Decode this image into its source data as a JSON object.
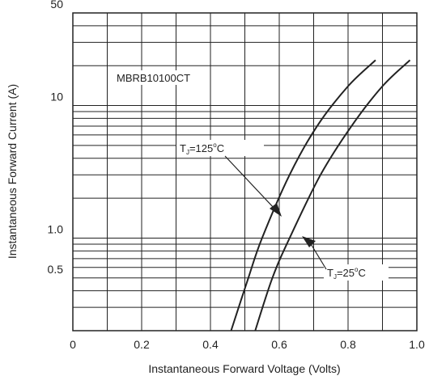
{
  "chart_data": {
    "type": "line",
    "title": "",
    "xlabel": "Instantaneous Forward Voltage (Volts)",
    "ylabel": "Instantaneous Forward Current (A)",
    "xlim": [
      0,
      1.0
    ],
    "ylim": [
      0.2,
      50
    ],
    "y_scale": "log",
    "grid": true,
    "x_ticks": [
      0,
      0.2,
      0.4,
      0.6,
      0.8,
      1.0
    ],
    "x_tick_labels": [
      "0",
      "0.2",
      "0.4",
      "0.6",
      "0.8",
      "1.0"
    ],
    "y_ticks": [
      0.5,
      1.0,
      10,
      50
    ],
    "y_tick_labels": [
      "0.5",
      "1.0",
      "10",
      "50"
    ],
    "annotations": {
      "part_number": "MBRB10100CT",
      "hot_curve": {
        "prefix": "T",
        "sub": "J",
        "value": "=125",
        "unit_sup": "o",
        "unit": "C"
      },
      "room_curve": {
        "prefix": "T",
        "sub": "J",
        "value": "=25",
        "unit_sup": "o",
        "unit": "C"
      }
    },
    "series": [
      {
        "points": [
          [
            0.46,
            0.2
          ],
          [
            0.51,
            0.5
          ],
          [
            0.55,
            1.0
          ],
          [
            0.63,
            3.0
          ],
          [
            0.71,
            7.0
          ],
          [
            0.8,
            14.0
          ],
          [
            0.88,
            22.0
          ]
        ]
      },
      {
        "points": [
          [
            0.53,
            0.2
          ],
          [
            0.58,
            0.5
          ],
          [
            0.63,
            1.0
          ],
          [
            0.72,
            3.0
          ],
          [
            0.81,
            7.0
          ],
          [
            0.9,
            14.0
          ],
          [
            0.98,
            22.0
          ]
        ]
      }
    ]
  }
}
